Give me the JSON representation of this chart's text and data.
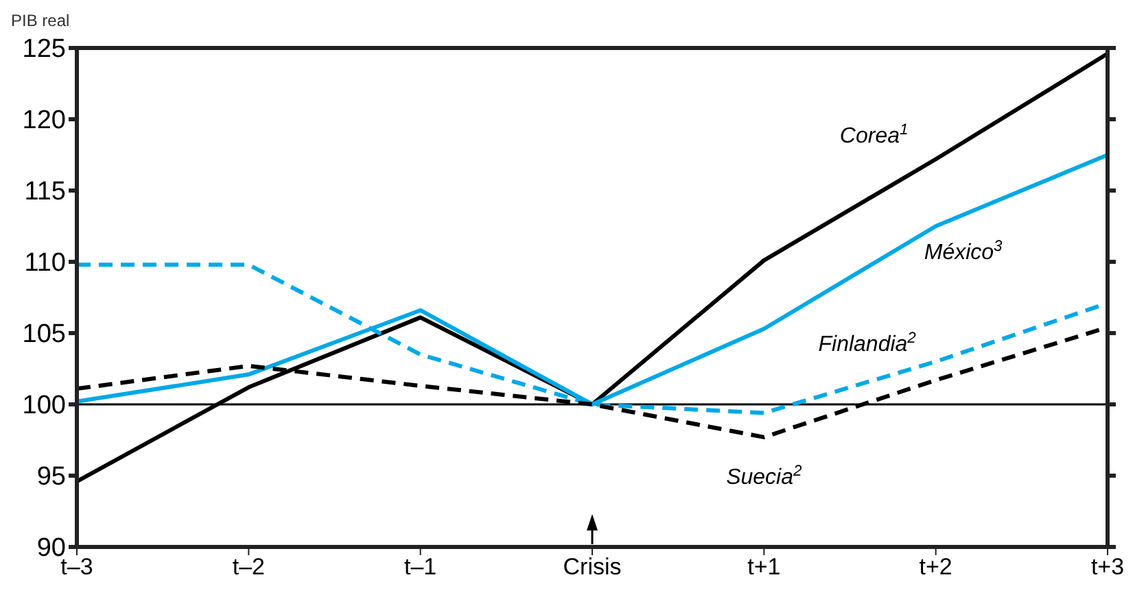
{
  "chart_data": {
    "type": "line",
    "ylabel": "PIB real",
    "categories": [
      "t–3",
      "t–2",
      "t–1",
      "Crisis",
      "t+1",
      "t+2",
      "t+3"
    ],
    "ylim": [
      90,
      125
    ],
    "yticks": [
      90,
      95,
      100,
      105,
      110,
      115,
      120,
      125
    ],
    "marker": "none",
    "ref_lines": [
      {
        "axis": "y",
        "value": 100,
        "color": "#000000"
      }
    ],
    "series": [
      {
        "name": "Corea$^{1}$",
        "color": "#000000",
        "line_style": "solid",
        "values": [
          94.6,
          101.2,
          106.1,
          100,
          110.1,
          117.2,
          124.6
        ]
      },
      {
        "name": "México$^{3}$",
        "color": "#00a8e6",
        "line_style": "solid",
        "values": [
          100.2,
          102.1,
          106.6,
          100,
          105.3,
          112.5,
          117.5
        ]
      },
      {
        "name": "Finlandia$^{2}$",
        "color": "#00a8e6",
        "line_style": "dashed",
        "values": [
          109.8,
          109.8,
          103.5,
          100,
          99.4,
          103,
          107.1
        ]
      },
      {
        "name": "Suecia$^{2}$",
        "color": "#000000",
        "line_style": "dashed",
        "values": [
          101.1,
          102.7,
          101.3,
          100,
          97.7,
          101.7,
          105.4
        ]
      }
    ]
  }
}
